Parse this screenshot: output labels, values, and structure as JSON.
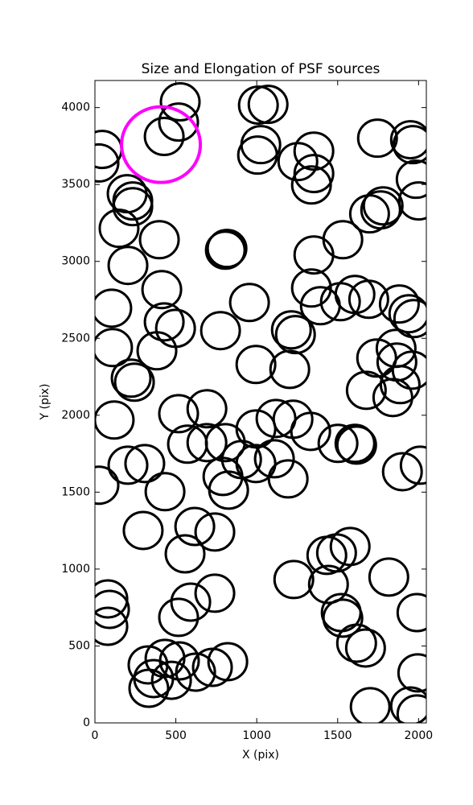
{
  "chart_data": {
    "type": "scatter",
    "title": "Size and Elongation of PSF sources",
    "xlabel": "X (pix)",
    "ylabel": "Y (pix)",
    "xlim": [
      0,
      2048
    ],
    "ylim": [
      0,
      4176
    ],
    "xticks": [
      0,
      500,
      1000,
      1500,
      2000
    ],
    "yticks": [
      0,
      500,
      1000,
      1500,
      2000,
      2500,
      3000,
      3500,
      4000
    ],
    "color": "#000000",
    "x": [
      527,
      517,
      428,
      45,
      25,
      199,
      234,
      234,
      149,
      398,
      204,
      816,
      806,
      413,
      104,
      428,
      498,
      109,
      383,
      224,
      244,
      119,
      517,
      692,
      572,
      692,
      806,
      308,
      204,
      25,
      433,
      791,
      826,
      906,
      995,
      995,
      1119,
      1109,
      1194,
      1224,
      1333,
      1502,
      1607,
      1617,
      1900,
      2010,
      298,
      617,
      741,
      557,
      1433,
      1493,
      1577,
      1816,
      1229,
      1443,
      80,
      90,
      80,
      592,
      517,
      741,
      1522,
      1532,
      1617,
      1672,
      1990,
      328,
      363,
      333,
      433,
      522,
      473,
      622,
      726,
      821,
      1701,
      1950,
      1990,
      1995,
      1010,
      1070,
      1025,
      1005,
      1254,
      1353,
      1353,
      1338,
      1746,
      1950,
      1965,
      1985,
      2000,
      1781,
      1766,
      1697,
      1532,
      1353,
      1338,
      1393,
      1517,
      1607,
      1692,
      1881,
      1940,
      1970,
      955,
      776,
      1239,
      1214,
      995,
      1204,
      1741,
      1866,
      1861,
      1886,
      1841,
      1677,
      1960
    ],
    "y": [
      4037,
      3906,
      3812,
      3728,
      3640,
      3440,
      3393,
      3356,
      3215,
      3141,
      2974,
      3084,
      3073,
      2817,
      2696,
      2607,
      2565,
      2440,
      2419,
      2241,
      2215,
      1969,
      2010,
      2042,
      1812,
      1822,
      1822,
      1686,
      1675,
      1545,
      1503,
      1602,
      1513,
      1712,
      1686,
      1911,
      1979,
      1717,
      1586,
      1974,
      1895,
      1817,
      1817,
      1806,
      1633,
      1675,
      1251,
      1277,
      1241,
      1099,
      1089,
      1105,
      1147,
      948,
      932,
      900,
      806,
      738,
      628,
      785,
      686,
      843,
      717,
      681,
      518,
      487,
      717,
      377,
      288,
      225,
      419,
      403,
      277,
      330,
      361,
      398,
      105,
      110,
      58,
      325,
      4016,
      4021,
      3759,
      3691,
      3649,
      3717,
      3571,
      3497,
      3801,
      3791,
      3759,
      3534,
      3393,
      3361,
      3335,
      3309,
      3141,
      3042,
      2827,
      2712,
      2738,
      2785,
      2754,
      2723,
      2660,
      2628,
      2733,
      2550,
      2524,
      2555,
      2330,
      2298,
      2372,
      2346,
      2435,
      2199,
      2115,
      2162,
      2293
    ],
    "highlight": {
      "x": 408,
      "y": 3759,
      "color": "#ff00ff"
    }
  }
}
